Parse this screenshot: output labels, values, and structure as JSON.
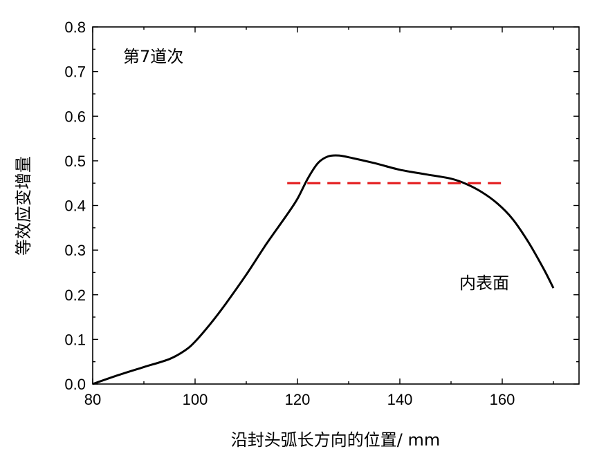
{
  "chart_data": {
    "type": "line",
    "xlabel": "沿封头弧长方向的位置/ mm",
    "ylabel": "等效应变增量",
    "xlim": [
      80,
      175
    ],
    "ylim": [
      0,
      0.8
    ],
    "x_ticks": [
      "80",
      "100",
      "120",
      "140",
      "160"
    ],
    "y_ticks": [
      "0.0",
      "0.1",
      "0.2",
      "0.3",
      "0.4",
      "0.5",
      "0.6",
      "0.7",
      "0.8"
    ],
    "annotations": [
      "第7道次",
      "内表面"
    ],
    "grid": false,
    "series": [
      {
        "color": "#000000",
        "style": "solid",
        "x": [
          80,
          85,
          90,
          95,
          98,
          100,
          103,
          106,
          110,
          114,
          118,
          120,
          122,
          124,
          126,
          128,
          130,
          135,
          140,
          145,
          150,
          153,
          156,
          159,
          162,
          165,
          168,
          170
        ],
        "y": [
          0.0,
          0.02,
          0.038,
          0.056,
          0.075,
          0.095,
          0.135,
          0.18,
          0.245,
          0.315,
          0.38,
          0.415,
          0.46,
          0.495,
          0.51,
          0.512,
          0.508,
          0.495,
          0.48,
          0.47,
          0.46,
          0.448,
          0.43,
          0.405,
          0.37,
          0.32,
          0.26,
          0.215
        ]
      },
      {
        "color": "#e31a1c",
        "style": "dashed",
        "x": [
          118,
          160
        ],
        "y": [
          0.45,
          0.45
        ]
      }
    ]
  }
}
